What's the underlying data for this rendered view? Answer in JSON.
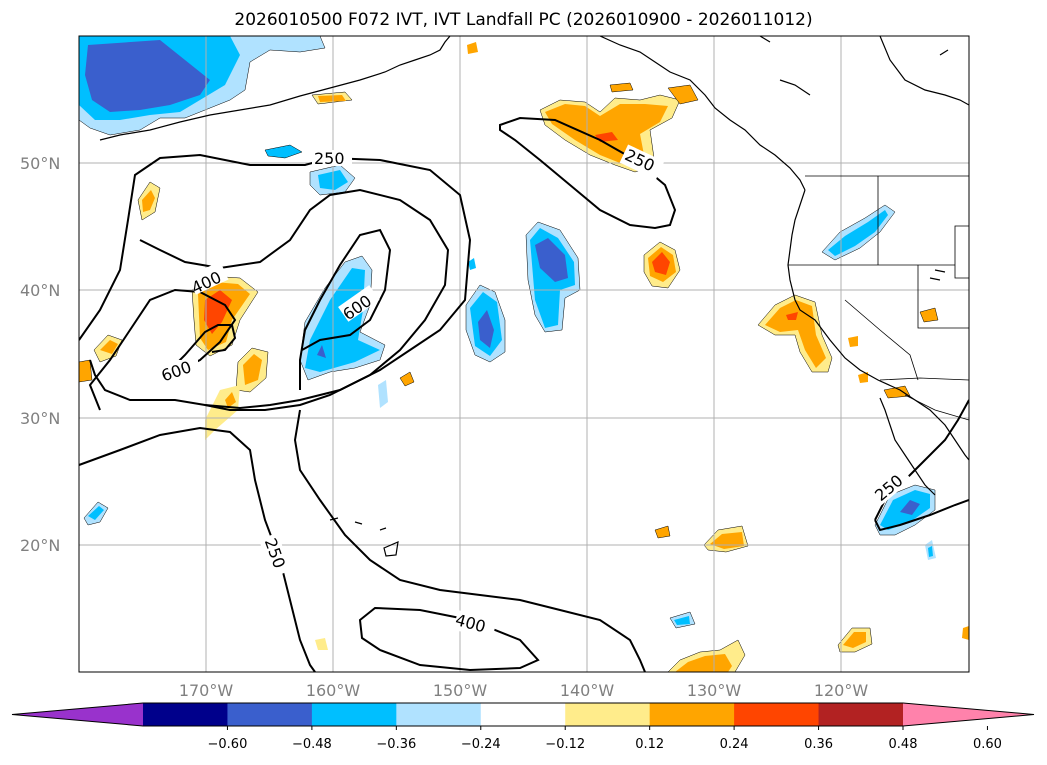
{
  "title": "2026010500 F072 IVT, IVT Landfall PC (2026010900 - 2026011012)",
  "lat_labels": [
    "50°N",
    "40°N",
    "30°N",
    "20°N"
  ],
  "lon_labels": [
    "170°W",
    "160°W",
    "150°W",
    "140°W",
    "130°W",
    "120°W"
  ],
  "contour_labels": [
    "250",
    "400",
    "600",
    "600",
    "250",
    "400",
    "250",
    "250"
  ],
  "colorbar": {
    "ticks": [
      "−0.60",
      "−0.48",
      "−0.36",
      "−0.24",
      "−0.12",
      "0.12",
      "0.24",
      "0.36",
      "0.48",
      "0.60"
    ],
    "colors": [
      "#9932cc",
      "#00008b",
      "#3a5fcd",
      "#00bfff",
      "#b0e2ff",
      "#ffffff",
      "#ffec8b",
      "#ffa500",
      "#ff4500",
      "#b22222",
      "#ff82ab"
    ]
  },
  "colors": {
    "neg_light": "#b0e2ff",
    "neg_mid": "#00bfff",
    "neg_dark": "#3a5fcd",
    "pos_light": "#ffec8b",
    "pos_mid": "#ffa500",
    "pos_dark": "#ff4500",
    "grid": "#b0b0b0"
  }
}
